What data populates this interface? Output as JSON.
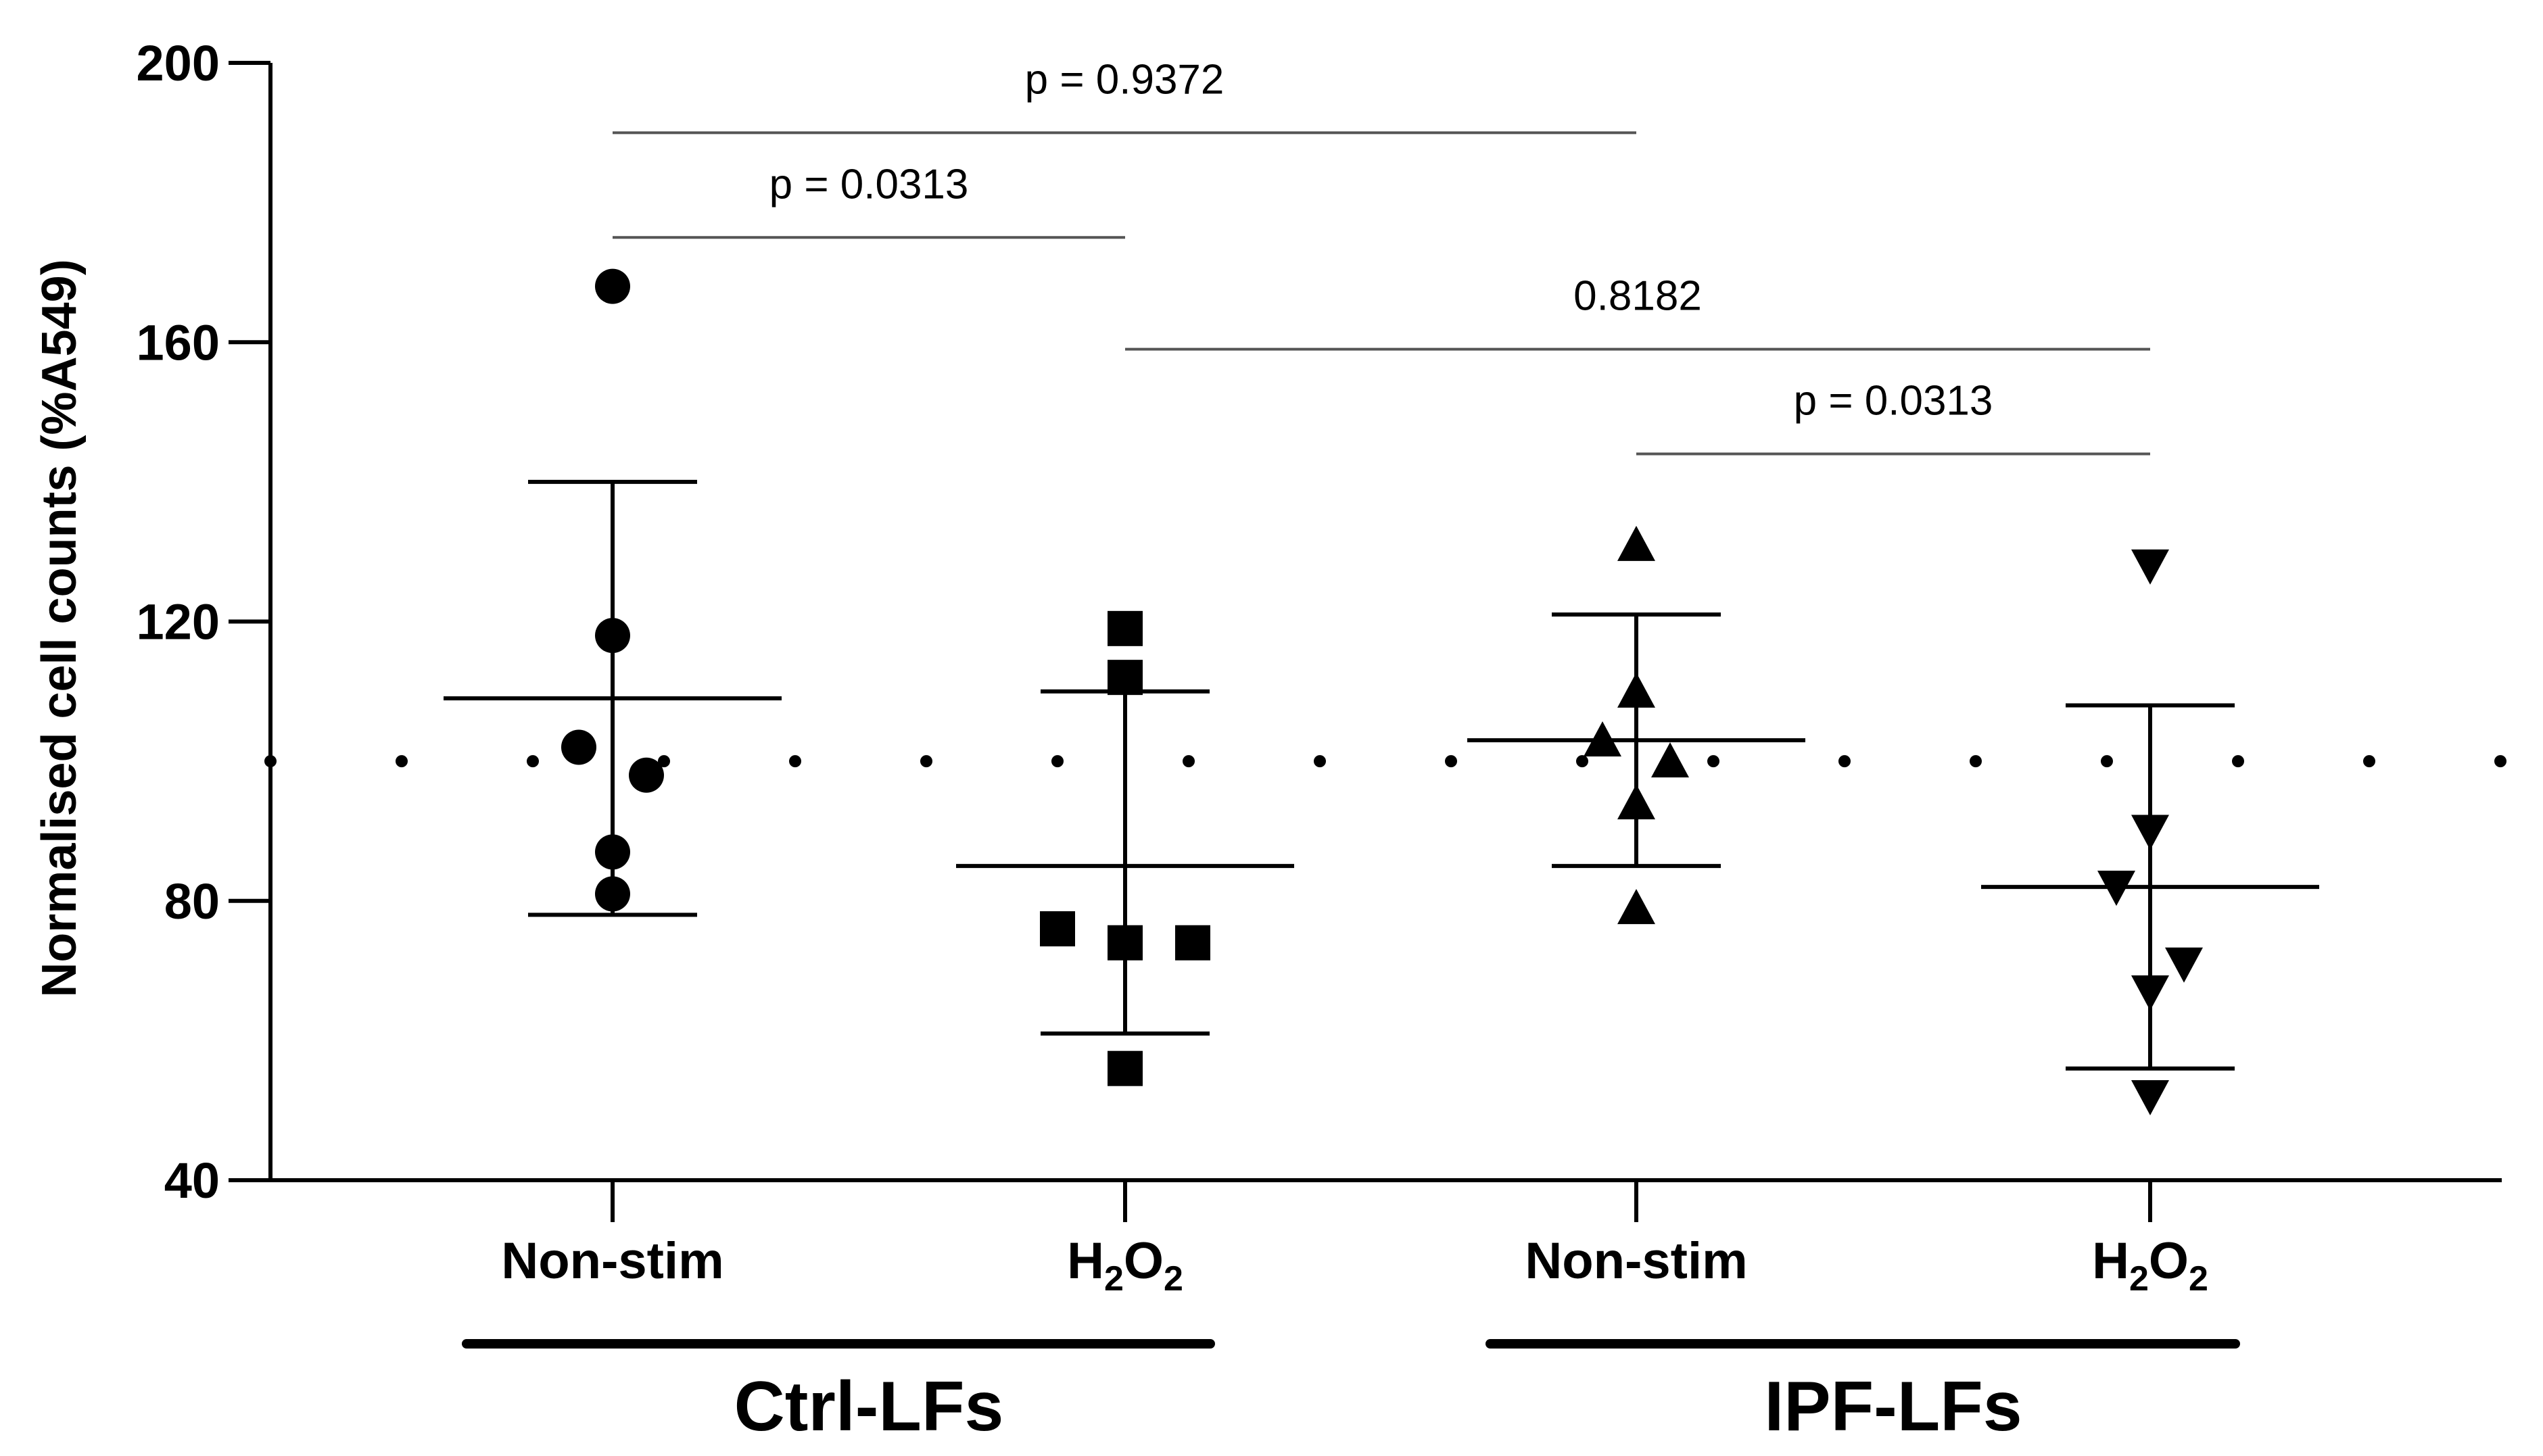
{
  "chart_data": {
    "type": "scatter",
    "subtype": "dot-plot with mean and SD error bars",
    "title": "",
    "ylabel": "Normalised cell counts (%A549)",
    "ylim": [
      40,
      200
    ],
    "yticks": [
      40,
      80,
      120,
      160,
      200
    ],
    "grid": false,
    "reference_line": {
      "y": 100,
      "style": "dotted"
    },
    "categories": [
      {
        "label": "Non-stim",
        "marker": "circle",
        "values": [
          168,
          118,
          102,
          98,
          87,
          81
        ],
        "mean": 109,
        "sd_upper": 140,
        "sd_lower": 78
      },
      {
        "label": "H",
        "sub": "2",
        "suffix": "O",
        "sub2": "2",
        "marker": "square",
        "values": [
          119,
          112,
          76,
          74,
          74,
          56
        ],
        "mean": 85,
        "sd_upper": 110,
        "sd_lower": 61
      },
      {
        "label": "Non-stim",
        "marker": "triangle-up",
        "values": [
          131,
          110,
          103,
          100,
          94,
          79
        ],
        "mean": 103,
        "sd_upper": 121,
        "sd_lower": 85
      },
      {
        "label": "H",
        "sub": "2",
        "suffix": "O",
        "sub2": "2",
        "marker": "triangle-down",
        "values": [
          128,
          90,
          82,
          71,
          67,
          52
        ],
        "mean": 82,
        "sd_upper": 108,
        "sd_lower": 56
      }
    ],
    "groups": [
      {
        "label": "Ctrl-LFs",
        "from": 0,
        "to": 1
      },
      {
        "label": "IPF-LFs",
        "from": 2,
        "to": 3
      }
    ],
    "comparisons": [
      {
        "from": 0,
        "to": 2,
        "y": 190,
        "label": "p = 0.9372"
      },
      {
        "from": 0,
        "to": 1,
        "y": 175,
        "label": "p = 0.0313"
      },
      {
        "from": 1,
        "to": 3,
        "y": 159,
        "label": "0.8182"
      },
      {
        "from": 2,
        "to": 3,
        "y": 144,
        "label": "p = 0.0313"
      }
    ]
  }
}
